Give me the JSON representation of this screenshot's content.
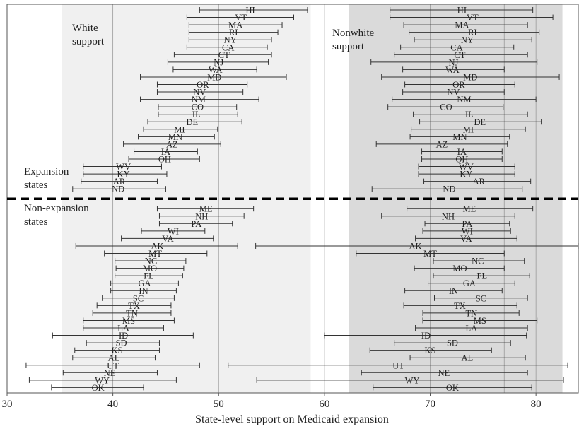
{
  "chart_data": {
    "type": "interval",
    "title": "",
    "xlabel": "State-level support on Medicaid expansion",
    "ylabel": "",
    "xlim": [
      30,
      84
    ],
    "x_ticks": [
      30,
      40,
      50,
      60,
      70,
      80
    ],
    "gridlines_x": [
      40,
      50,
      60,
      70,
      77,
      80
    ],
    "panels": [
      {
        "name": "White support",
        "band": [
          35.2,
          58.7
        ],
        "color": "#f0f0f0"
      },
      {
        "name": "Nonwhite support",
        "band": [
          62.3,
          82.5
        ],
        "color": "#dadada"
      }
    ],
    "panel_titles": {
      "white": [
        "White",
        "support"
      ],
      "nonwhite": [
        "Nonwhite",
        "support"
      ]
    },
    "group_labels": {
      "expansion": [
        "Expansion",
        "states"
      ],
      "nonexpansion": [
        "Non-expansion",
        "states"
      ]
    },
    "expansion_states": [
      {
        "state": "HI",
        "white": [
          48.2,
          53.0,
          58.4
        ],
        "nonwhite": [
          66.2,
          73.0,
          79.7
        ]
      },
      {
        "state": "VT",
        "white": [
          47.0,
          52.1,
          57.1
        ],
        "nonwhite": [
          66.2,
          74.0,
          81.6
        ]
      },
      {
        "state": "MA",
        "white": [
          47.2,
          51.6,
          56.0
        ],
        "nonwhite": [
          67.5,
          73.0,
          79.2
        ]
      },
      {
        "state": "RI",
        "white": [
          47.2,
          51.4,
          55.6
        ],
        "nonwhite": [
          68.0,
          74.0,
          80.3
        ]
      },
      {
        "state": "NY",
        "white": [
          47.2,
          51.1,
          55.0
        ],
        "nonwhite": [
          68.5,
          73.5,
          79.6
        ]
      },
      {
        "state": "CA",
        "white": [
          47.0,
          50.9,
          54.6
        ],
        "nonwhite": [
          67.2,
          72.5,
          77.9
        ]
      },
      {
        "state": "CT",
        "white": [
          45.8,
          50.5,
          55.0
        ],
        "nonwhite": [
          66.6,
          72.8,
          79.2
        ]
      },
      {
        "state": "NJ",
        "white": [
          45.2,
          50.0,
          54.7
        ],
        "nonwhite": [
          64.4,
          72.2,
          80.1
        ]
      },
      {
        "state": "WA",
        "white": [
          45.7,
          49.7,
          53.6
        ],
        "nonwhite": [
          67.4,
          72.1,
          77.0
        ]
      },
      {
        "state": "MD",
        "white": [
          42.6,
          49.6,
          56.4
        ],
        "nonwhite": [
          65.4,
          73.8,
          82.2
        ]
      },
      {
        "state": "OR",
        "white": [
          44.2,
          48.5,
          52.7
        ],
        "nonwhite": [
          67.6,
          72.7,
          78.0
        ]
      },
      {
        "state": "NV",
        "white": [
          44.2,
          48.2,
          52.3
        ],
        "nonwhite": [
          67.4,
          72.2,
          77.0
        ]
      },
      {
        "state": "NM",
        "white": [
          42.6,
          48.1,
          53.8
        ],
        "nonwhite": [
          66.4,
          73.2,
          80.0
        ]
      },
      {
        "state": "CO",
        "white": [
          44.3,
          48.0,
          51.7
        ],
        "nonwhite": [
          66.0,
          71.5,
          76.9
        ]
      },
      {
        "state": "IL",
        "white": [
          44.3,
          47.9,
          51.8
        ],
        "nonwhite": [
          68.4,
          73.7,
          79.2
        ]
      },
      {
        "state": "DE",
        "white": [
          43.3,
          47.5,
          52.2
        ],
        "nonwhite": [
          69.0,
          74.7,
          80.5
        ]
      },
      {
        "state": "MI",
        "white": [
          42.9,
          46.3,
          49.9
        ],
        "nonwhite": [
          68.2,
          73.6,
          79.0
        ]
      },
      {
        "state": "MN",
        "white": [
          42.4,
          45.9,
          49.6
        ],
        "nonwhite": [
          68.1,
          72.8,
          77.5
        ]
      },
      {
        "state": "AZ",
        "white": [
          41.0,
          45.6,
          50.2
        ],
        "nonwhite": [
          64.9,
          71.1,
          77.3
        ]
      },
      {
        "state": "IA",
        "white": [
          42.0,
          45.0,
          48.0
        ],
        "nonwhite": [
          69.2,
          73.0,
          76.8
        ]
      },
      {
        "state": "OH",
        "white": [
          41.5,
          44.9,
          48.2
        ],
        "nonwhite": [
          69.2,
          73.0,
          76.8
        ]
      },
      {
        "state": "WV",
        "white": [
          37.2,
          41.0,
          44.6
        ],
        "nonwhite": [
          68.9,
          73.4,
          78.0
        ]
      },
      {
        "state": "KY",
        "white": [
          37.2,
          41.0,
          45.1
        ],
        "nonwhite": [
          68.9,
          73.4,
          78.0
        ]
      },
      {
        "state": "AR",
        "white": [
          37.0,
          40.6,
          44.2
        ],
        "nonwhite": [
          69.4,
          74.6,
          79.5
        ]
      },
      {
        "state": "ND",
        "white": [
          36.2,
          40.5,
          45.0
        ],
        "nonwhite": [
          64.5,
          71.8,
          78.7
        ]
      }
    ],
    "nonexpansion_states": [
      {
        "state": "ME",
        "white": [
          44.2,
          48.8,
          53.3
        ],
        "nonwhite": [
          67.8,
          73.7,
          79.7
        ]
      },
      {
        "state": "NH",
        "white": [
          44.4,
          48.4,
          52.4
        ],
        "nonwhite": [
          65.4,
          71.7,
          78.0
        ]
      },
      {
        "state": "PA",
        "white": [
          44.4,
          47.9,
          51.3
        ],
        "nonwhite": [
          69.5,
          73.5,
          77.5
        ]
      },
      {
        "state": "WI",
        "white": [
          42.7,
          45.7,
          48.7
        ],
        "nonwhite": [
          69.3,
          73.5,
          77.6
        ]
      },
      {
        "state": "VA",
        "white": [
          40.8,
          45.2,
          49.5
        ],
        "nonwhite": [
          68.6,
          73.4,
          78.2
        ]
      },
      {
        "state": "AK",
        "white": [
          36.5,
          44.2,
          51.8
        ],
        "nonwhite": [
          53.5,
          68.6,
          84.0
        ]
      },
      {
        "state": "MT",
        "white": [
          39.2,
          44.0,
          48.9
        ],
        "nonwhite": [
          63.0,
          70.0,
          77.0
        ]
      },
      {
        "state": "NC",
        "white": [
          40.2,
          43.6,
          46.9
        ],
        "nonwhite": [
          70.3,
          74.5,
          78.9
        ]
      },
      {
        "state": "MO",
        "white": [
          40.3,
          43.5,
          46.7
        ],
        "nonwhite": [
          68.5,
          72.8,
          77.0
        ]
      },
      {
        "state": "FL",
        "white": [
          40.2,
          43.4,
          46.6
        ],
        "nonwhite": [
          70.3,
          74.9,
          79.4
        ]
      },
      {
        "state": "GA",
        "white": [
          39.8,
          43.0,
          46.2
        ],
        "nonwhite": [
          69.8,
          73.7,
          78.0
        ]
      },
      {
        "state": "IN",
        "white": [
          39.8,
          42.9,
          46.0
        ],
        "nonwhite": [
          67.6,
          72.2,
          76.8
        ]
      },
      {
        "state": "SC",
        "white": [
          39.0,
          42.4,
          45.8
        ],
        "nonwhite": [
          70.4,
          74.8,
          79.2
        ]
      },
      {
        "state": "TX",
        "white": [
          38.5,
          42.0,
          45.5
        ],
        "nonwhite": [
          67.5,
          72.8,
          78.2
        ]
      },
      {
        "state": "TN",
        "white": [
          38.1,
          41.8,
          45.5
        ],
        "nonwhite": [
          69.3,
          73.9,
          78.4
        ]
      },
      {
        "state": "MS",
        "white": [
          37.2,
          41.5,
          45.8
        ],
        "nonwhite": [
          69.3,
          74.7,
          80.1
        ]
      },
      {
        "state": "LA",
        "white": [
          37.2,
          41.0,
          44.8
        ],
        "nonwhite": [
          68.6,
          73.9,
          79.2
        ]
      },
      {
        "state": "ID",
        "white": [
          34.3,
          41.0,
          47.6
        ],
        "nonwhite": [
          60.0,
          69.6,
          79.1
        ]
      },
      {
        "state": "SD",
        "white": [
          37.5,
          40.8,
          44.4
        ],
        "nonwhite": [
          66.6,
          72.1,
          77.6
        ]
      },
      {
        "state": "KS",
        "white": [
          36.4,
          40.4,
          44.4
        ],
        "nonwhite": [
          64.3,
          70.0,
          75.8
        ]
      },
      {
        "state": "AL",
        "white": [
          36.2,
          40.1,
          44.0
        ],
        "nonwhite": [
          68.1,
          73.5,
          79.0
        ]
      },
      {
        "state": "UT",
        "white": [
          31.8,
          40.0,
          48.2
        ],
        "nonwhite": [
          50.9,
          67.0,
          83.0
        ]
      },
      {
        "state": "NE",
        "white": [
          35.3,
          39.7,
          44.2
        ],
        "nonwhite": [
          63.5,
          71.3,
          79.2
        ]
      },
      {
        "state": "WY",
        "white": [
          32.1,
          39.0,
          46.0
        ],
        "nonwhite": [
          53.6,
          68.3,
          82.6
        ]
      },
      {
        "state": "OK",
        "white": [
          34.2,
          38.6,
          42.9
        ],
        "nonwhite": [
          64.6,
          72.1,
          79.6
        ]
      }
    ]
  }
}
